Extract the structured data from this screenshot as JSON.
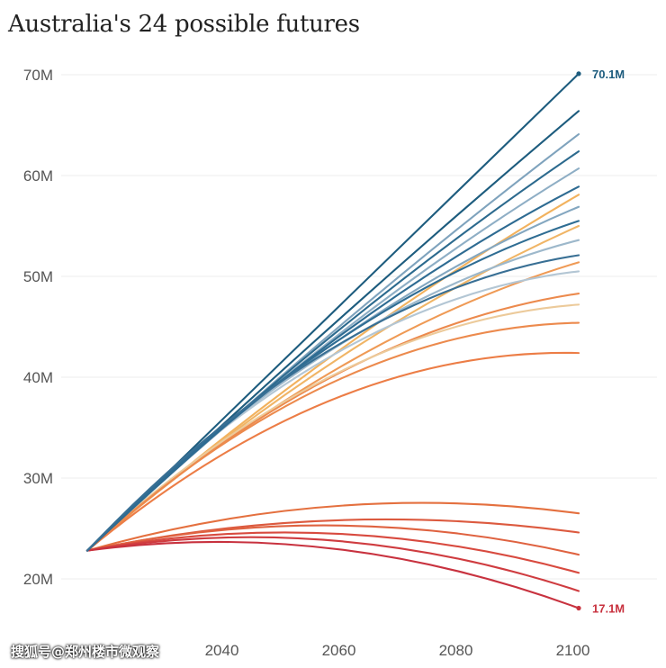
{
  "title": "Australia's 24 possible futures",
  "watermark": "搜狐号@郑州楼市微观察",
  "chart_data": {
    "type": "line",
    "title": "Australia's 24 possible futures",
    "xlabel": "",
    "ylabel": "",
    "xlim": [
      2017,
      2101
    ],
    "ylim": [
      18,
      72
    ],
    "x_ticks": [
      "2040",
      "2060",
      "2080",
      "2100"
    ],
    "y_ticks": [
      "20M",
      "30M",
      "40M",
      "50M",
      "60M",
      "70M"
    ],
    "y_tick_values": [
      20,
      30,
      40,
      50,
      60,
      70
    ],
    "x_tick_values": [
      2040,
      2060,
      2080,
      2100
    ],
    "grid": true,
    "legend": "none",
    "start": {
      "year": 2017,
      "value": 22.8
    },
    "end_year": 2101,
    "annotations": [
      {
        "text": "70.1M",
        "year": 2101,
        "value": 70.1,
        "color": "#1d5c7e"
      },
      {
        "text": "17.1M",
        "year": 2101,
        "value": 17.1,
        "color": "#c8323f"
      }
    ],
    "series": [
      {
        "end": 70.1,
        "mid": 46.5,
        "color": "#1d5c7e"
      },
      {
        "end": 66.4,
        "mid": 45.2,
        "color": "#1d5c7e"
      },
      {
        "end": 64.1,
        "mid": 44.5,
        "color": "#7fa3bd"
      },
      {
        "end": 62.4,
        "mid": 44.2,
        "color": "#2c6a8e"
      },
      {
        "end": 60.7,
        "mid": 43.8,
        "color": "#8eaec5"
      },
      {
        "end": 58.9,
        "mid": 43.6,
        "color": "#2e6b92"
      },
      {
        "end": 58.1,
        "mid": 42.2,
        "color": "#f2b25e"
      },
      {
        "end": 56.9,
        "mid": 43.3,
        "color": "#84a7c0"
      },
      {
        "end": 55.5,
        "mid": 43.3,
        "color": "#2f6d93"
      },
      {
        "end": 55.0,
        "mid": 41.5,
        "color": "#f0b566"
      },
      {
        "end": 53.6,
        "mid": 42.8,
        "color": "#9db8cb"
      },
      {
        "end": 52.1,
        "mid": 42.9,
        "color": "#386f94"
      },
      {
        "end": 51.4,
        "mid": 40.6,
        "color": "#ef9a55"
      },
      {
        "end": 50.5,
        "mid": 42.2,
        "color": "#b3c6d4"
      },
      {
        "end": 48.3,
        "mid": 40.1,
        "color": "#ec8a4d"
      },
      {
        "end": 47.2,
        "mid": 40.2,
        "color": "#ecca9a"
      },
      {
        "end": 45.4,
        "mid": 39.5,
        "color": "#ec8a4d"
      },
      {
        "end": 42.4,
        "mid": 37.8,
        "color": "#ec7d46"
      },
      {
        "end": 26.5,
        "mid": 27.2,
        "color": "#e4703f"
      },
      {
        "end": 24.6,
        "mid": 25.8,
        "color": "#dc5a3f"
      },
      {
        "end": 22.4,
        "mid": 25.3,
        "color": "#df6240"
      },
      {
        "end": 20.6,
        "mid": 24.5,
        "color": "#d84a3f"
      },
      {
        "end": 18.8,
        "mid": 23.8,
        "color": "#cf3c40"
      },
      {
        "end": 17.1,
        "mid": 23.0,
        "color": "#c8323f"
      }
    ]
  }
}
